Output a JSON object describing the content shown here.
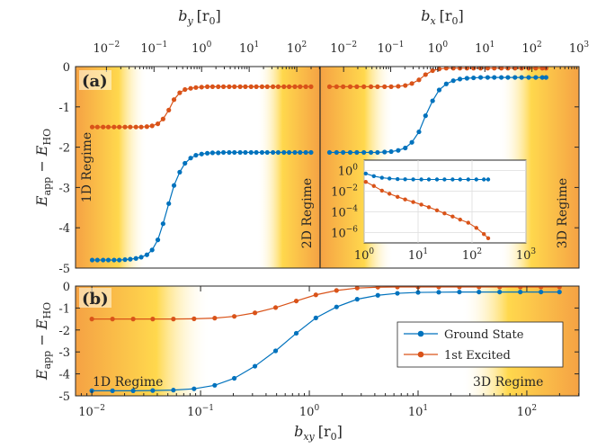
{
  "colors": {
    "ground": "#0072BD",
    "excited": "#D95319",
    "regime_outer": "#F5A244",
    "regime_inner": "#FFD84D",
    "frame": "#262626"
  },
  "chart_data": [
    {
      "type": "line",
      "panel": "a",
      "panel_label": "(a)",
      "top_axes": [
        {
          "label": "b_y [r_0]",
          "label_main": "b",
          "label_sub": "y",
          "label_unit": "[r",
          "label_unit_sub": "0",
          "label_unit_end": "]",
          "scale": "log",
          "xlim_exp": [
            -2.65,
            2.49
          ],
          "ticks": [
            {
              "exp": -2,
              "base": "10",
              "sup": "−2"
            },
            {
              "exp": -1,
              "base": "10",
              "sup": "−1"
            },
            {
              "exp": 0,
              "base": "10",
              "sup": "0"
            },
            {
              "exp": 1,
              "base": "10",
              "sup": "1"
            },
            {
              "exp": 2,
              "base": "10",
              "sup": "2"
            }
          ]
        },
        {
          "label": "b_x [r_0]",
          "label_main": "b",
          "label_sub": "x",
          "label_unit": "[r",
          "label_unit_sub": "0",
          "label_unit_end": "]",
          "scale": "log",
          "xlim_exp": [
            -2.5,
            3.0
          ],
          "ticks": [
            {
              "exp": -2,
              "base": "10",
              "sup": "−2"
            },
            {
              "exp": -1,
              "base": "10",
              "sup": "−1"
            },
            {
              "exp": 0,
              "base": "10",
              "sup": "0"
            },
            {
              "exp": 1,
              "base": "10",
              "sup": "1"
            },
            {
              "exp": 2,
              "base": "10",
              "sup": "2"
            },
            {
              "exp": 3,
              "base": "10",
              "sup": "3"
            }
          ]
        }
      ],
      "ylabel": "E_app − E_HO",
      "ylabel_parts": {
        "e1": "E",
        "s1": "app",
        "mid": " − ",
        "e2": "E",
        "s2": "HO"
      },
      "ylim": [
        -5,
        0
      ],
      "yticks": [
        "0",
        "-1",
        "-2",
        "-3",
        "-4",
        "-5"
      ],
      "regime_labels": [
        "1D Regime",
        "2D Regime",
        "3D Regime"
      ],
      "series": [
        {
          "name": "Ground State",
          "log10_x": [
            -2.3,
            -2.19,
            -2.07,
            -1.96,
            -1.84,
            -1.73,
            -1.61,
            -1.5,
            -1.38,
            -1.27,
            -1.15,
            -1.04,
            -0.92,
            -0.81,
            -0.69,
            -0.58,
            -0.46,
            -0.35,
            -0.23,
            -0.12,
            0.0,
            0.12,
            0.23,
            0.35,
            0.46,
            0.58,
            0.69,
            0.81,
            0.92,
            1.04,
            1.15,
            1.27,
            1.38,
            1.5,
            1.61,
            1.73,
            1.84,
            1.96,
            2.07,
            2.19,
            2.3,
            -2.3,
            -2.15,
            -2.01,
            -1.86,
            -1.72,
            -1.57,
            -1.42,
            -1.28,
            -1.13,
            -0.99,
            -0.84,
            -0.69,
            -0.55,
            -0.4,
            -0.26,
            -0.11,
            0.03,
            0.18,
            0.33,
            0.47,
            0.62,
            0.76,
            0.91,
            1.06,
            1.2,
            1.35,
            1.49,
            1.64,
            1.78,
            1.93,
            2.08,
            2.22,
            2.3
          ],
          "half": [
            "y",
            "y",
            "y",
            "y",
            "y",
            "y",
            "y",
            "y",
            "y",
            "y",
            "y",
            "y",
            "y",
            "y",
            "y",
            "y",
            "y",
            "y",
            "y",
            "y",
            "y",
            "y",
            "y",
            "y",
            "y",
            "y",
            "y",
            "y",
            "y",
            "y",
            "y",
            "y",
            "y",
            "y",
            "y",
            "y",
            "y",
            "y",
            "y",
            "y",
            "y",
            "x",
            "x",
            "x",
            "x",
            "x",
            "x",
            "x",
            "x",
            "x",
            "x",
            "x",
            "x",
            "x",
            "x",
            "x",
            "x",
            "x",
            "x",
            "x",
            "x",
            "x",
            "x",
            "x",
            "x",
            "x",
            "x",
            "x",
            "x",
            "x",
            "x",
            "x",
            "x",
            "x"
          ],
          "values": [
            -4.8,
            -4.8,
            -4.8,
            -4.8,
            -4.8,
            -4.8,
            -4.79,
            -4.78,
            -4.76,
            -4.73,
            -4.67,
            -4.55,
            -4.3,
            -3.9,
            -3.4,
            -2.95,
            -2.62,
            -2.4,
            -2.27,
            -2.2,
            -2.17,
            -2.15,
            -2.14,
            -2.14,
            -2.13,
            -2.13,
            -2.13,
            -2.13,
            -2.13,
            -2.13,
            -2.13,
            -2.13,
            -2.13,
            -2.13,
            -2.13,
            -2.13,
            -2.13,
            -2.13,
            -2.13,
            -2.13,
            -2.13,
            -2.13,
            -2.13,
            -2.13,
            -2.13,
            -2.13,
            -2.13,
            -2.13,
            -2.13,
            -2.12,
            -2.11,
            -2.08,
            -2.02,
            -1.88,
            -1.62,
            -1.22,
            -0.85,
            -0.58,
            -0.43,
            -0.35,
            -0.31,
            -0.29,
            -0.28,
            -0.27,
            -0.27,
            -0.27,
            -0.27,
            -0.27,
            -0.27,
            -0.27,
            -0.27,
            -0.27,
            -0.27,
            -0.27
          ]
        },
        {
          "name": "1st Excited",
          "log10_x": [
            -2.3,
            -2.19,
            -2.07,
            -1.96,
            -1.84,
            -1.73,
            -1.61,
            -1.5,
            -1.38,
            -1.27,
            -1.15,
            -1.04,
            -0.92,
            -0.81,
            -0.69,
            -0.58,
            -0.46,
            -0.35,
            -0.23,
            -0.12,
            0.0,
            0.12,
            0.23,
            0.35,
            0.46,
            0.58,
            0.69,
            0.81,
            0.92,
            1.04,
            1.15,
            1.27,
            1.38,
            1.5,
            1.61,
            1.73,
            1.84,
            1.96,
            2.07,
            2.19,
            2.3,
            -2.3,
            -2.15,
            -2.01,
            -1.86,
            -1.72,
            -1.57,
            -1.42,
            -1.28,
            -1.13,
            -0.99,
            -0.84,
            -0.69,
            -0.55,
            -0.4,
            -0.26,
            -0.11,
            0.03,
            0.18,
            0.33,
            0.47,
            0.62,
            0.76,
            0.91,
            1.06,
            1.2,
            1.35,
            1.49,
            1.64,
            1.78,
            1.93,
            2.08,
            2.22,
            2.3
          ],
          "half": [
            "y",
            "y",
            "y",
            "y",
            "y",
            "y",
            "y",
            "y",
            "y",
            "y",
            "y",
            "y",
            "y",
            "y",
            "y",
            "y",
            "y",
            "y",
            "y",
            "y",
            "y",
            "y",
            "y",
            "y",
            "y",
            "y",
            "y",
            "y",
            "y",
            "y",
            "y",
            "y",
            "y",
            "y",
            "y",
            "y",
            "y",
            "y",
            "y",
            "y",
            "y",
            "x",
            "x",
            "x",
            "x",
            "x",
            "x",
            "x",
            "x",
            "x",
            "x",
            "x",
            "x",
            "x",
            "x",
            "x",
            "x",
            "x",
            "x",
            "x",
            "x",
            "x",
            "x",
            "x",
            "x",
            "x",
            "x",
            "x",
            "x",
            "x",
            "x",
            "x",
            "x",
            "x"
          ],
          "values": [
            -1.5,
            -1.5,
            -1.5,
            -1.5,
            -1.5,
            -1.5,
            -1.5,
            -1.5,
            -1.5,
            -1.5,
            -1.49,
            -1.47,
            -1.42,
            -1.3,
            -1.08,
            -0.82,
            -0.65,
            -0.57,
            -0.54,
            -0.52,
            -0.51,
            -0.5,
            -0.5,
            -0.5,
            -0.5,
            -0.5,
            -0.5,
            -0.5,
            -0.5,
            -0.5,
            -0.5,
            -0.5,
            -0.5,
            -0.5,
            -0.5,
            -0.5,
            -0.5,
            -0.5,
            -0.5,
            -0.5,
            -0.5,
            -0.5,
            -0.5,
            -0.5,
            -0.5,
            -0.5,
            -0.5,
            -0.5,
            -0.5,
            -0.5,
            -0.5,
            -0.49,
            -0.47,
            -0.42,
            -0.33,
            -0.2,
            -0.1,
            -0.06,
            -0.04,
            -0.04,
            -0.04,
            -0.04,
            -0.04,
            -0.04,
            -0.04,
            -0.04,
            -0.04,
            -0.04,
            -0.04,
            -0.04,
            -0.04,
            -0.04,
            -0.04,
            -0.04
          ]
        }
      ],
      "inset": {
        "type": "line",
        "scale": "loglog",
        "xlim_exp": [
          0,
          3
        ],
        "ylim_exp": [
          -7,
          1
        ],
        "xticks": [
          {
            "exp": 0,
            "base": "10",
            "sup": "0"
          },
          {
            "exp": 1,
            "base": "10",
            "sup": "1"
          },
          {
            "exp": 2,
            "base": "10",
            "sup": "2"
          },
          {
            "exp": 3,
            "base": "10",
            "sup": "3"
          }
        ],
        "yticks": [
          {
            "exp": 0,
            "base": "10",
            "sup": "0"
          },
          {
            "exp": -2,
            "base": "10",
            "sup": "−2"
          },
          {
            "exp": -4,
            "base": "10",
            "sup": "−4"
          },
          {
            "exp": -6,
            "base": "10",
            "sup": "−6"
          }
        ],
        "series": [
          {
            "name": "Ground State",
            "log10_x": [
              0.03,
              0.18,
              0.33,
              0.47,
              0.62,
              0.76,
              0.91,
              1.06,
              1.2,
              1.35,
              1.49,
              1.64,
              1.78,
              1.93,
              2.08,
              2.22,
              2.3
            ],
            "log10_y": [
              -0.3,
              -0.55,
              -0.7,
              -0.78,
              -0.83,
              -0.85,
              -0.86,
              -0.87,
              -0.87,
              -0.87,
              -0.87,
              -0.87,
              -0.87,
              -0.87,
              -0.87,
              -0.87,
              -0.87
            ]
          },
          {
            "name": "1st Excited",
            "log10_x": [
              0.03,
              0.18,
              0.33,
              0.47,
              0.62,
              0.76,
              0.91,
              1.06,
              1.2,
              1.35,
              1.49,
              1.64,
              1.78,
              1.93,
              2.08,
              2.22,
              2.3
            ],
            "log10_y": [
              -1.1,
              -1.5,
              -1.95,
              -2.25,
              -2.55,
              -2.8,
              -3.05,
              -3.3,
              -3.55,
              -3.85,
              -4.15,
              -4.45,
              -4.75,
              -5.05,
              -5.55,
              -6.15,
              -6.55
            ]
          }
        ]
      }
    },
    {
      "type": "line",
      "panel": "b",
      "panel_label": "(b)",
      "xlabel": "b_xy [r_0]",
      "xlabel_parts": {
        "main": "b",
        "sub": "xy",
        "unit": "[r",
        "unit_sub": "0",
        "unit_end": "]"
      },
      "xscale": "log",
      "xlim_exp": [
        -2.15,
        2.48
      ],
      "xticks": [
        {
          "exp": -2,
          "base": "10",
          "sup": "−2"
        },
        {
          "exp": -1,
          "base": "10",
          "sup": "−1"
        },
        {
          "exp": 0,
          "base": "10",
          "sup": "0"
        },
        {
          "exp": 1,
          "base": "10",
          "sup": "1"
        },
        {
          "exp": 2,
          "base": "10",
          "sup": "2"
        }
      ],
      "ylabel": "E_app − E_HO",
      "ylabel_parts": {
        "e1": "E",
        "s1": "app",
        "mid": " − ",
        "e2": "E",
        "s2": "HO"
      },
      "ylim": [
        -5,
        0
      ],
      "yticks": [
        "0",
        "-1",
        "-2",
        "-3",
        "-4",
        "-5"
      ],
      "regime_labels": [
        "1D Regime",
        "3D Regime"
      ],
      "legend": {
        "position": "center-right",
        "entries": [
          "Ground State",
          "1st Excited"
        ]
      },
      "series": [
        {
          "name": "Ground State",
          "log10_x": [
            -2.0,
            -1.81,
            -1.62,
            -1.44,
            -1.25,
            -1.06,
            -0.87,
            -0.69,
            -0.5,
            -0.31,
            -0.12,
            0.06,
            0.25,
            0.44,
            0.63,
            0.81,
            1.0,
            1.19,
            1.38,
            1.56,
            1.75,
            1.94,
            2.13,
            2.3
          ],
          "values": [
            -4.77,
            -4.77,
            -4.77,
            -4.76,
            -4.74,
            -4.68,
            -4.52,
            -4.2,
            -3.65,
            -2.95,
            -2.15,
            -1.45,
            -0.95,
            -0.6,
            -0.42,
            -0.33,
            -0.29,
            -0.28,
            -0.27,
            -0.27,
            -0.27,
            -0.27,
            -0.27,
            -0.27
          ]
        },
        {
          "name": "1st Excited",
          "log10_x": [
            -2.0,
            -1.81,
            -1.62,
            -1.44,
            -1.25,
            -1.06,
            -0.87,
            -0.69,
            -0.5,
            -0.31,
            -0.12,
            0.06,
            0.25,
            0.44,
            0.63,
            0.81,
            1.0,
            1.19,
            1.38,
            1.56,
            1.75,
            1.94,
            2.13,
            2.3
          ],
          "values": [
            -1.5,
            -1.5,
            -1.5,
            -1.5,
            -1.5,
            -1.49,
            -1.46,
            -1.38,
            -1.22,
            -0.98,
            -0.68,
            -0.4,
            -0.2,
            -0.09,
            -0.05,
            -0.04,
            -0.04,
            -0.04,
            -0.04,
            -0.04,
            -0.04,
            -0.04,
            -0.04,
            -0.04
          ]
        }
      ]
    }
  ]
}
